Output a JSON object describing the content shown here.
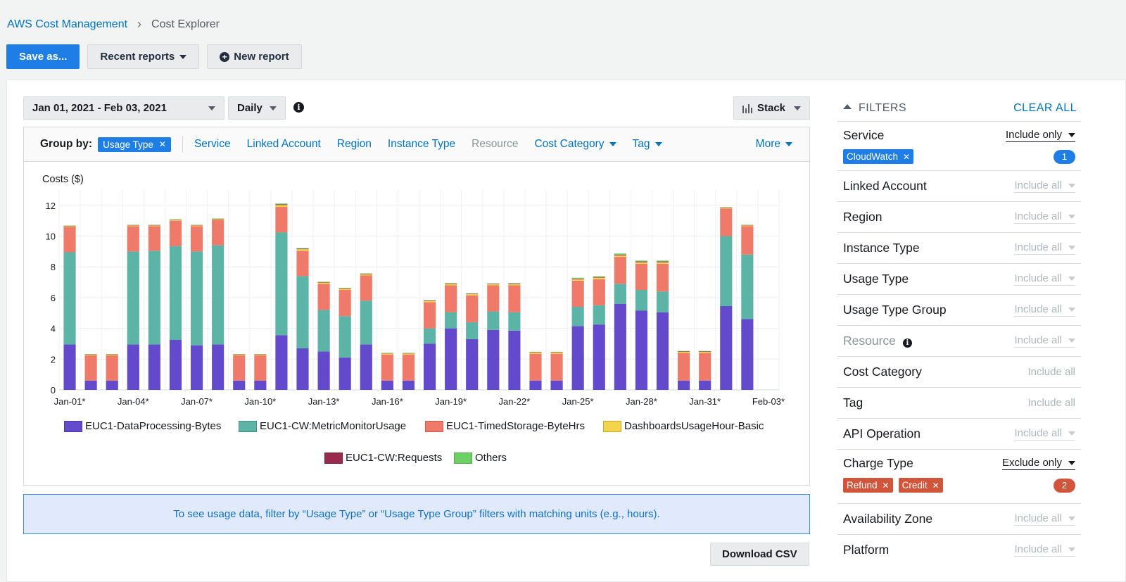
{
  "breadcrumb": {
    "root": "AWS Cost Management",
    "current": "Cost Explorer"
  },
  "toolbar": {
    "save_as": "Save as...",
    "recent_reports": "Recent reports",
    "new_report": "New report"
  },
  "controls": {
    "date_range": "Jan 01, 2021 - Feb 03, 2021",
    "granularity": "Daily",
    "chart_style": "Stack"
  },
  "group_by": {
    "label": "Group by:",
    "active_chip": "Usage Type",
    "options": [
      "Service",
      "Linked Account",
      "Region",
      "Instance Type",
      "Resource",
      "Cost Category",
      "Tag"
    ],
    "more": "More"
  },
  "notice": "To see usage data, filter by “Usage Type” or “Usage Type Group” filters with matching units (e.g., hours).",
  "download_csv": "Download CSV",
  "filters": {
    "title": "FILTERS",
    "clear_all": "CLEAR ALL",
    "service": {
      "label": "Service",
      "mode": "Include only",
      "chips": [
        "CloudWatch"
      ],
      "count": "1"
    },
    "linked_account": {
      "label": "Linked Account",
      "mode": "Include all"
    },
    "region": {
      "label": "Region",
      "mode": "Include all"
    },
    "instance_type": {
      "label": "Instance Type",
      "mode": "Include all"
    },
    "usage_type": {
      "label": "Usage Type",
      "mode": "Include all"
    },
    "usage_type_group": {
      "label": "Usage Type Group",
      "mode": "Include all"
    },
    "resource": {
      "label": "Resource",
      "mode": "Include all"
    },
    "cost_category": {
      "label": "Cost Category",
      "mode": "Include all"
    },
    "tag": {
      "label": "Tag",
      "mode": "Include all"
    },
    "api_operation": {
      "label": "API Operation",
      "mode": "Include all"
    },
    "charge_type": {
      "label": "Charge Type",
      "mode": "Exclude only",
      "chips": [
        "Refund",
        "Credit"
      ],
      "count": "2"
    },
    "availability_zone": {
      "label": "Availability Zone",
      "mode": "Include all"
    },
    "platform": {
      "label": "Platform",
      "mode": "Include all"
    }
  },
  "chart_data": {
    "type": "bar",
    "stacked": true,
    "ylabel": "Costs ($)",
    "ylim": [
      0,
      13
    ],
    "yticks": [
      0,
      2,
      4,
      6,
      8,
      10,
      12
    ],
    "grid": true,
    "xtick_labels": [
      "Jan-01*",
      "Jan-04*",
      "Jan-07*",
      "Jan-10*",
      "Jan-13*",
      "Jan-16*",
      "Jan-19*",
      "Jan-22*",
      "Jan-25*",
      "Jan-28*",
      "Jan-31*",
      "Feb-03*"
    ],
    "categories": [
      "Jan-01",
      "Jan-02",
      "Jan-03",
      "Jan-04",
      "Jan-05",
      "Jan-06",
      "Jan-07",
      "Jan-08",
      "Jan-09",
      "Jan-10",
      "Jan-11",
      "Jan-12",
      "Jan-13",
      "Jan-14",
      "Jan-15",
      "Jan-16",
      "Jan-17",
      "Jan-18",
      "Jan-19",
      "Jan-20",
      "Jan-21",
      "Jan-22",
      "Jan-23",
      "Jan-24",
      "Jan-25",
      "Jan-26",
      "Jan-27",
      "Jan-28",
      "Jan-29",
      "Jan-30",
      "Jan-31",
      "Feb-01",
      "Feb-02",
      "Feb-03"
    ],
    "series": [
      {
        "name": "EUC1-DataProcessing-Bytes",
        "color": "#6349cc",
        "values": [
          2.95,
          0.6,
          0.6,
          2.95,
          2.95,
          3.25,
          2.9,
          2.95,
          0.6,
          0.6,
          3.55,
          2.7,
          2.5,
          2.1,
          2.95,
          0.6,
          0.6,
          3.0,
          4.0,
          3.3,
          3.9,
          3.85,
          0.6,
          0.6,
          4.15,
          4.25,
          5.6,
          5.15,
          5.05,
          0.6,
          0.6,
          5.45,
          4.6,
          0
        ]
      },
      {
        "name": "EUC1-CW:MetricMonitorUsage",
        "color": "#5bb4a5",
        "values": [
          6.0,
          0,
          0,
          6.05,
          6.1,
          6.1,
          6.1,
          6.45,
          0,
          0,
          6.7,
          4.7,
          2.7,
          2.7,
          2.85,
          0,
          0,
          1.0,
          1.05,
          1.1,
          1.2,
          1.2,
          0,
          0,
          1.25,
          1.25,
          1.3,
          1.35,
          1.35,
          0,
          0,
          4.55,
          4.2,
          0
        ]
      },
      {
        "name": "EUC1-TimedStorage-ByteHrs",
        "color": "#ef7a69",
        "values": [
          1.65,
          1.65,
          1.65,
          1.65,
          1.6,
          1.65,
          1.65,
          1.65,
          1.65,
          1.65,
          1.65,
          1.65,
          1.7,
          1.7,
          1.65,
          1.7,
          1.7,
          1.7,
          1.75,
          1.75,
          1.7,
          1.75,
          1.75,
          1.75,
          1.7,
          1.7,
          1.75,
          1.7,
          1.8,
          1.8,
          1.8,
          1.8,
          1.85,
          0
        ]
      },
      {
        "name": "DashboardsUsageHour-Basic",
        "color": "#f4d44a",
        "values": [
          0.05,
          0.05,
          0.05,
          0.05,
          0.05,
          0.05,
          0.05,
          0.05,
          0.05,
          0.05,
          0.12,
          0.1,
          0.08,
          0.08,
          0.07,
          0.07,
          0.07,
          0.08,
          0.08,
          0.08,
          0.07,
          0.08,
          0.08,
          0.08,
          0.1,
          0.1,
          0.1,
          0.1,
          0.1,
          0.07,
          0.07,
          0.05,
          0.05,
          0
        ]
      },
      {
        "name": "EUC1-CW:Requests",
        "color": "#99294d",
        "values": [
          0.02,
          0.02,
          0.02,
          0.02,
          0.02,
          0.02,
          0.02,
          0.02,
          0.02,
          0.02,
          0.04,
          0.04,
          0.03,
          0.03,
          0.03,
          0.02,
          0.02,
          0.03,
          0.03,
          0.03,
          0.03,
          0.03,
          0.03,
          0.03,
          0.04,
          0.04,
          0.05,
          0.05,
          0.05,
          0.03,
          0.03,
          0.02,
          0.02,
          0
        ]
      },
      {
        "name": "Others",
        "color": "#6cd065",
        "values": [
          0.02,
          0.01,
          0.01,
          0.02,
          0.02,
          0.03,
          0.02,
          0.03,
          0.01,
          0.01,
          0.06,
          0.04,
          0.03,
          0.03,
          0.03,
          0.02,
          0.02,
          0.03,
          0.04,
          0.03,
          0.03,
          0.04,
          0.02,
          0.02,
          0.05,
          0.05,
          0.07,
          0.06,
          0.06,
          0.03,
          0.03,
          0.02,
          0.02,
          0
        ]
      }
    ]
  },
  "colors": {
    "accent": "#1f7de6",
    "link": "#0073bb",
    "danger_chip": "#d1553a"
  },
  "icons": [
    "chevron-right-icon",
    "plus-circle-icon",
    "info-icon",
    "bar-chart-icon",
    "caret-up-icon",
    "close-icon",
    "caret-down-icon"
  ]
}
